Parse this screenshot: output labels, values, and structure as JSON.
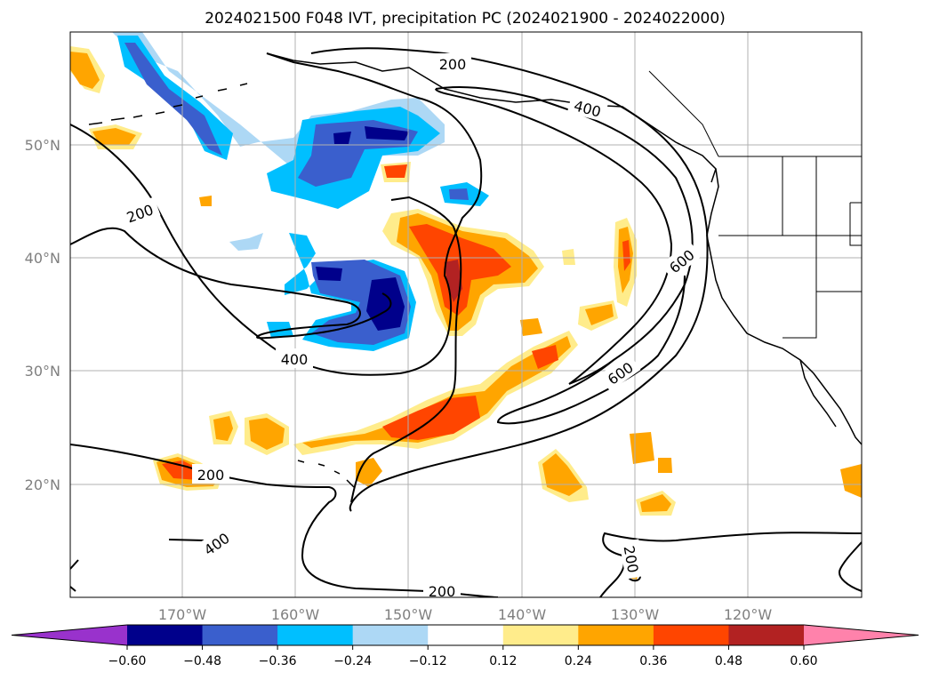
{
  "title": "2024021500 F048 IVT, precipitation PC (2024021900 - 2024022000)",
  "map": {
    "lat_labels": [
      "50°N",
      "40°N",
      "30°N",
      "20°N"
    ],
    "lon_labels": [
      "170°W",
      "160°W",
      "150°W",
      "140°W",
      "130°W",
      "120°W"
    ],
    "contour_labels": [
      "200",
      "400",
      "200",
      "400",
      "600",
      "600",
      "200",
      "400",
      "200",
      "200"
    ]
  },
  "colorbar": {
    "ticks": [
      "−0.60",
      "−0.48",
      "−0.36",
      "−0.24",
      "−0.12",
      "0.12",
      "0.24",
      "0.36",
      "0.48",
      "0.60"
    ],
    "colors": [
      "#9932cc",
      "#00008b",
      "#3a5fcd",
      "#00bfff",
      "#add8f5",
      "#ffffff",
      "#ffec8b",
      "#ffa500",
      "#ff4500",
      "#b22222",
      "#ff82ab"
    ]
  },
  "palette": {
    "neg_dark": "#00008b",
    "neg_mid": "#3a5fcd",
    "neg_light": "#00bfff",
    "neg_pale": "#add8f5",
    "pos_pale": "#ffec8b",
    "pos_light": "#ffa500",
    "pos_mid": "#ff4500",
    "pos_dark": "#b22222"
  }
}
